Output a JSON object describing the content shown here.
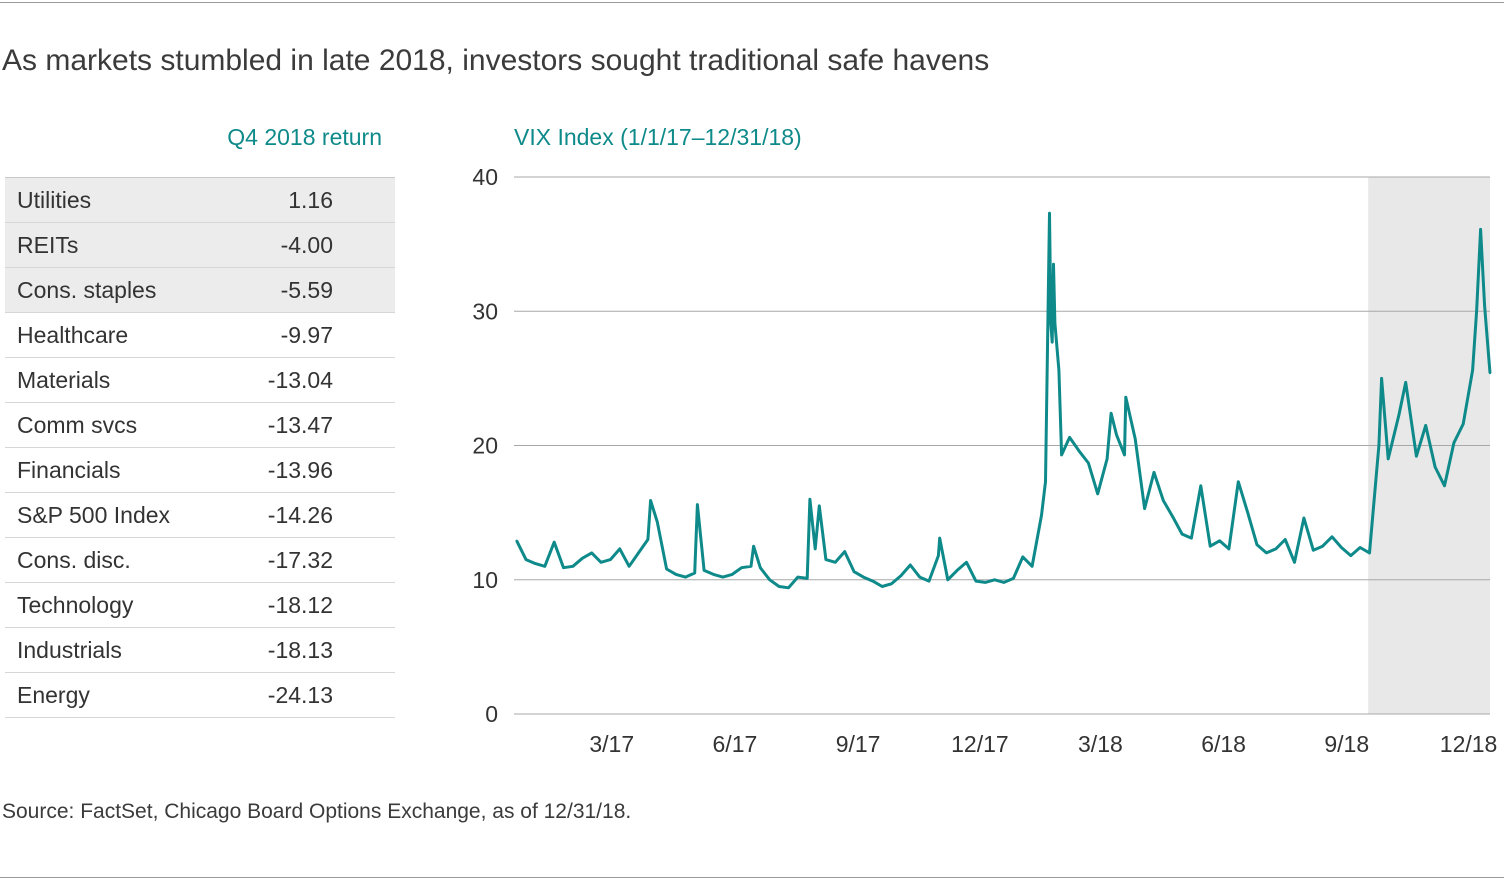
{
  "title": "As markets stumbled in late 2018, investors sought traditional safe havens",
  "table": {
    "header": "Q4 2018 return",
    "rows": [
      {
        "label": "Utilities",
        "value": "1.16",
        "highlight": true
      },
      {
        "label": "REITs",
        "value": "-4.00",
        "highlight": true
      },
      {
        "label": "Cons. staples",
        "value": "-5.59",
        "highlight": true
      },
      {
        "label": "Healthcare",
        "value": "-9.97",
        "highlight": false
      },
      {
        "label": "Materials",
        "value": "-13.04",
        "highlight": false
      },
      {
        "label": "Comm svcs",
        "value": "-13.47",
        "highlight": false
      },
      {
        "label": "Financials",
        "value": "-13.96",
        "highlight": false
      },
      {
        "label": "S&P 500 Index",
        "value": "-14.26",
        "highlight": false
      },
      {
        "label": "Cons. disc.",
        "value": "-17.32",
        "highlight": false
      },
      {
        "label": "Technology",
        "value": "-18.12",
        "highlight": false
      },
      {
        "label": "Industrials",
        "value": "-18.13",
        "highlight": false
      },
      {
        "label": "Energy",
        "value": "-24.13",
        "highlight": false
      }
    ]
  },
  "source": "Source: FactSet, Chicago Board Options Exchange, as of 12/31/18.",
  "colors": {
    "line": "#0f8a8a",
    "shade": "#e8e8e8",
    "grid": "#a8a8a8",
    "highlight_row": "#ececec",
    "accent_text": "#0f8a8a"
  },
  "chart_data": {
    "type": "line",
    "title": "VIX Index (1/1/17–12/31/18)",
    "ylim": [
      0,
      40
    ],
    "yticks": [
      0,
      10,
      20,
      30,
      40
    ],
    "x_range": [
      "2017-01-01",
      "2018-12-31"
    ],
    "xticks": [
      {
        "date": "2017-03-15",
        "label": "3/17"
      },
      {
        "date": "2017-06-15",
        "label": "6/17"
      },
      {
        "date": "2017-09-15",
        "label": "9/17"
      },
      {
        "date": "2017-12-15",
        "label": "12/17"
      },
      {
        "date": "2018-03-15",
        "label": "3/18"
      },
      {
        "date": "2018-06-15",
        "label": "6/18"
      },
      {
        "date": "2018-09-15",
        "label": "9/18"
      },
      {
        "date": "2018-12-15",
        "label": "12/18"
      }
    ],
    "shaded_region": [
      "2018-10-01",
      "2018-12-31"
    ],
    "series": [
      {
        "x": [
          "2017-01-03",
          "2017-01-10",
          "2017-01-17",
          "2017-01-24",
          "2017-01-31",
          "2017-02-07",
          "2017-02-14",
          "2017-02-21",
          "2017-02-28",
          "2017-03-07",
          "2017-03-14",
          "2017-03-21",
          "2017-03-28",
          "2017-04-04",
          "2017-04-11",
          "2017-04-13",
          "2017-04-18",
          "2017-04-25",
          "2017-05-02",
          "2017-05-09",
          "2017-05-16",
          "2017-05-18",
          "2017-05-23",
          "2017-05-30",
          "2017-06-06",
          "2017-06-13",
          "2017-06-20",
          "2017-06-27",
          "2017-06-29",
          "2017-07-04",
          "2017-07-11",
          "2017-07-18",
          "2017-07-25",
          "2017-08-01",
          "2017-08-08",
          "2017-08-10",
          "2017-08-14",
          "2017-08-17",
          "2017-08-22",
          "2017-08-29",
          "2017-09-05",
          "2017-09-12",
          "2017-09-19",
          "2017-09-26",
          "2017-10-03",
          "2017-10-10",
          "2017-10-17",
          "2017-10-24",
          "2017-10-31",
          "2017-11-07",
          "2017-11-14",
          "2017-11-15",
          "2017-11-21",
          "2017-11-28",
          "2017-12-05",
          "2017-12-12",
          "2017-12-19",
          "2017-12-26",
          "2018-01-02",
          "2018-01-09",
          "2018-01-16",
          "2018-01-23",
          "2018-01-30",
          "2018-02-02",
          "2018-02-05",
          "2018-02-06",
          "2018-02-07",
          "2018-02-08",
          "2018-02-09",
          "2018-02-12",
          "2018-02-14",
          "2018-02-20",
          "2018-02-27",
          "2018-03-06",
          "2018-03-13",
          "2018-03-20",
          "2018-03-23",
          "2018-03-27",
          "2018-04-02",
          "2018-04-03",
          "2018-04-10",
          "2018-04-17",
          "2018-04-24",
          "2018-05-01",
          "2018-05-08",
          "2018-05-15",
          "2018-05-22",
          "2018-05-29",
          "2018-06-05",
          "2018-06-12",
          "2018-06-19",
          "2018-06-26",
          "2018-07-03",
          "2018-07-10",
          "2018-07-17",
          "2018-07-24",
          "2018-07-31",
          "2018-08-07",
          "2018-08-14",
          "2018-08-21",
          "2018-08-28",
          "2018-09-04",
          "2018-09-11",
          "2018-09-18",
          "2018-09-25",
          "2018-10-02",
          "2018-10-09",
          "2018-10-11",
          "2018-10-16",
          "2018-10-24",
          "2018-10-29",
          "2018-11-06",
          "2018-11-13",
          "2018-11-20",
          "2018-11-27",
          "2018-12-04",
          "2018-12-11",
          "2018-12-18",
          "2018-12-21",
          "2018-12-24",
          "2018-12-27",
          "2018-12-31"
        ],
        "values": [
          12.9,
          11.5,
          11.2,
          11.0,
          12.8,
          10.9,
          11.0,
          11.6,
          12.0,
          11.3,
          11.5,
          12.3,
          11.0,
          12.0,
          13.0,
          15.9,
          14.3,
          10.8,
          10.4,
          10.2,
          10.5,
          15.6,
          10.7,
          10.4,
          10.2,
          10.4,
          10.9,
          11.0,
          12.5,
          10.9,
          10.0,
          9.5,
          9.4,
          10.2,
          10.1,
          16.0,
          12.3,
          15.5,
          11.5,
          11.3,
          12.1,
          10.6,
          10.2,
          9.9,
          9.5,
          9.7,
          10.3,
          11.1,
          10.2,
          9.9,
          11.8,
          13.1,
          10.0,
          10.7,
          11.3,
          9.9,
          9.8,
          10.0,
          9.8,
          10.1,
          11.7,
          11.0,
          14.8,
          17.3,
          37.3,
          29.0,
          27.7,
          33.5,
          29.1,
          25.6,
          19.3,
          20.6,
          19.6,
          18.7,
          16.4,
          19.0,
          22.4,
          20.8,
          19.3,
          23.6,
          20.5,
          15.3,
          18.0,
          15.9,
          14.7,
          13.4,
          13.1,
          17.0,
          12.5,
          12.9,
          12.3,
          17.3,
          15.0,
          12.6,
          12.0,
          12.3,
          13.0,
          11.3,
          14.6,
          12.2,
          12.5,
          13.2,
          12.4,
          11.8,
          12.4,
          12.0,
          20.0,
          25.0,
          19.0,
          22.3,
          24.7,
          19.2,
          21.5,
          18.4,
          17.0,
          20.2,
          21.6,
          25.6,
          30.0,
          36.1,
          30.4,
          25.4
        ]
      }
    ]
  }
}
